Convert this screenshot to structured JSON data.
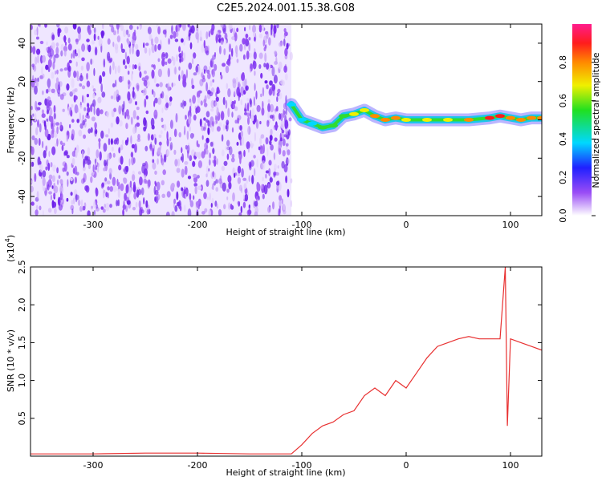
{
  "title": "C2E5.2024.001.15.38.G08",
  "colors": {
    "snr_line": "#e83030",
    "spectrogram_noise": "#7a2cf0",
    "ridge_core": "#e81e3c",
    "frame": "#000000"
  },
  "chart_data": [
    {
      "type": "heatmap",
      "title": "C2E5.2024.001.15.38.G08",
      "xlabel": "Height of straight line (km)",
      "ylabel": "Frequency (Hz)",
      "xlim": [
        -360,
        130
      ],
      "ylim": [
        -50,
        50
      ],
      "xticks": [
        -300,
        -200,
        -100,
        0,
        100
      ],
      "yticks": [
        -40,
        -20,
        0,
        20,
        40
      ],
      "xtick_labels": [
        "-300",
        "-200",
        "-100",
        "0",
        "100"
      ],
      "ytick_labels": [
        "-40",
        "-20",
        "0",
        "20",
        "40"
      ],
      "colorbar": {
        "label": "Normalized spectral amplitude",
        "range": [
          0,
          1
        ],
        "ticks": [
          0.0,
          0.2,
          0.4,
          0.6,
          0.8
        ],
        "tick_labels": [
          "0.0",
          "0.2",
          "0.4",
          "0.6",
          "0.8"
        ],
        "colormap": "rainbow (white-purple-blue-cyan-green-yellow-orange-red-magenta)"
      },
      "noise_region_x": [
        -360,
        -110
      ],
      "signal_ridge": {
        "x": [
          -110,
          -100,
          -90,
          -80,
          -70,
          -60,
          -50,
          -40,
          -30,
          -20,
          -10,
          0,
          20,
          40,
          60,
          80,
          90,
          100,
          110,
          120,
          130
        ],
        "frequency": [
          8,
          0,
          -2,
          -4,
          -3,
          2,
          3,
          5,
          2,
          0,
          1,
          0,
          0,
          0,
          0,
          1,
          2,
          1,
          0,
          1,
          1
        ],
        "amplitude": [
          0.25,
          0.3,
          0.3,
          0.45,
          0.5,
          0.55,
          0.6,
          0.6,
          0.7,
          0.75,
          0.7,
          0.65,
          0.6,
          0.62,
          0.7,
          0.8,
          0.85,
          0.75,
          0.7,
          0.72,
          0.7
        ]
      },
      "grid": false
    },
    {
      "type": "line",
      "xlabel": "Height of straight line (km)",
      "ylabel": "SNR (10 * v/v)",
      "y_scale_label": "(x10",
      "y_scale_exponent": "4",
      "y_scale_close": ")",
      "xlim": [
        -360,
        130
      ],
      "ylim": [
        0,
        2.5
      ],
      "xticks": [
        -300,
        -200,
        -100,
        0,
        100
      ],
      "xtick_labels": [
        "-300",
        "-200",
        "-100",
        "0",
        "100"
      ],
      "yticks": [
        0.5,
        1.0,
        1.5,
        2.0,
        2.5
      ],
      "ytick_labels": [
        "0.5",
        "1.0",
        "1.5",
        "2.0",
        "2.5"
      ],
      "series": [
        {
          "x": [
            -360,
            -300,
            -250,
            -200,
            -150,
            -110,
            -100,
            -90,
            -80,
            -70,
            -60,
            -50,
            -40,
            -30,
            -20,
            -10,
            0,
            10,
            20,
            30,
            40,
            50,
            60,
            70,
            80,
            90,
            95,
            97,
            100,
            110,
            120,
            130
          ],
          "y": [
            0.03,
            0.03,
            0.04,
            0.04,
            0.03,
            0.03,
            0.15,
            0.3,
            0.4,
            0.45,
            0.55,
            0.6,
            0.8,
            0.9,
            0.8,
            1.0,
            0.9,
            1.1,
            1.3,
            1.45,
            1.5,
            1.55,
            1.58,
            1.55,
            1.55,
            1.55,
            2.5,
            0.4,
            1.55,
            1.5,
            1.45,
            1.4
          ]
        }
      ],
      "grid": false
    }
  ]
}
